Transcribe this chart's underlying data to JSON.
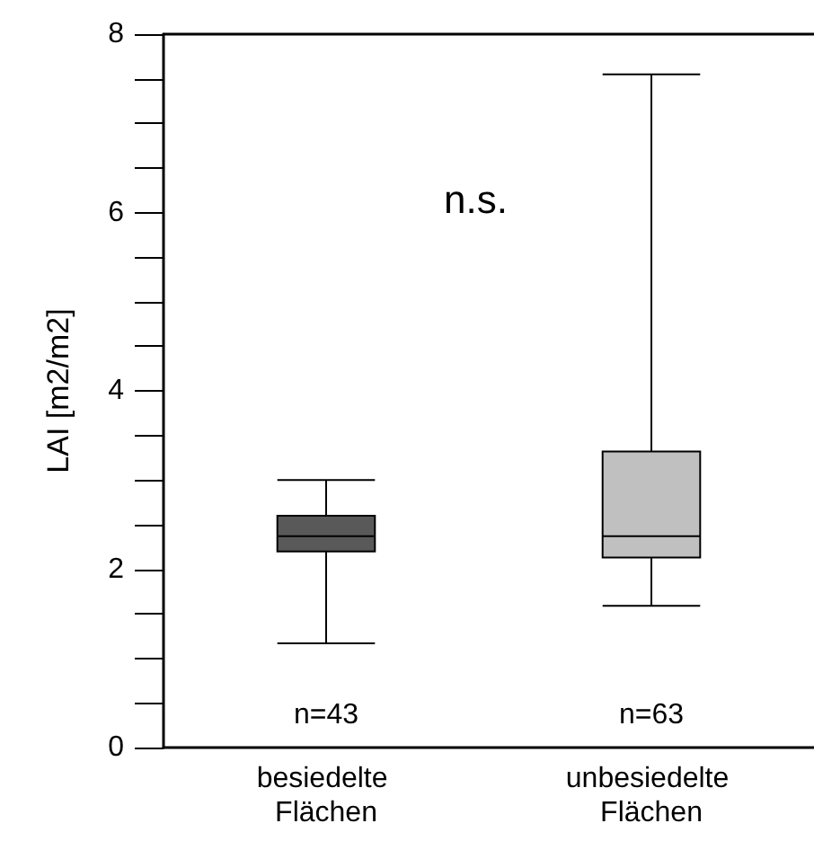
{
  "chart_data": {
    "type": "box",
    "ylabel": "LAI [m2/m2]",
    "categories": [
      "besiedelte Flächen",
      "unbesiedelte Flächen"
    ],
    "boxes": [
      {
        "low": 1.17,
        "q1": 2.2,
        "median": 2.37,
        "q3": 2.6,
        "high": 3.0
      },
      {
        "low": 1.59,
        "q1": 2.13,
        "median": 2.37,
        "q3": 3.32,
        "high": 7.55
      }
    ],
    "colors": [
      "#595959",
      "#c0c0c0"
    ],
    "ylim": [
      0,
      8
    ],
    "yticks": [
      0,
      {
        "value": 0.5,
        "label": null
      },
      {
        "value": 1,
        "label": null
      },
      {
        "value": 1.5,
        "label": null
      },
      2,
      {
        "value": 2.5,
        "label": null
      },
      {
        "value": 3,
        "label": null
      },
      {
        "value": 3.5,
        "label": null
      },
      4,
      {
        "value": 4.5,
        "label": null
      },
      {
        "value": 5,
        "label": null
      },
      {
        "value": 5.5,
        "label": null
      },
      6,
      {
        "value": 6.5,
        "label": null
      },
      {
        "value": 7,
        "label": null
      },
      {
        "value": 7.5,
        "label": null
      },
      8
    ],
    "grid": false,
    "annotations": [
      "n.s.",
      "n=43",
      "n=63"
    ]
  }
}
